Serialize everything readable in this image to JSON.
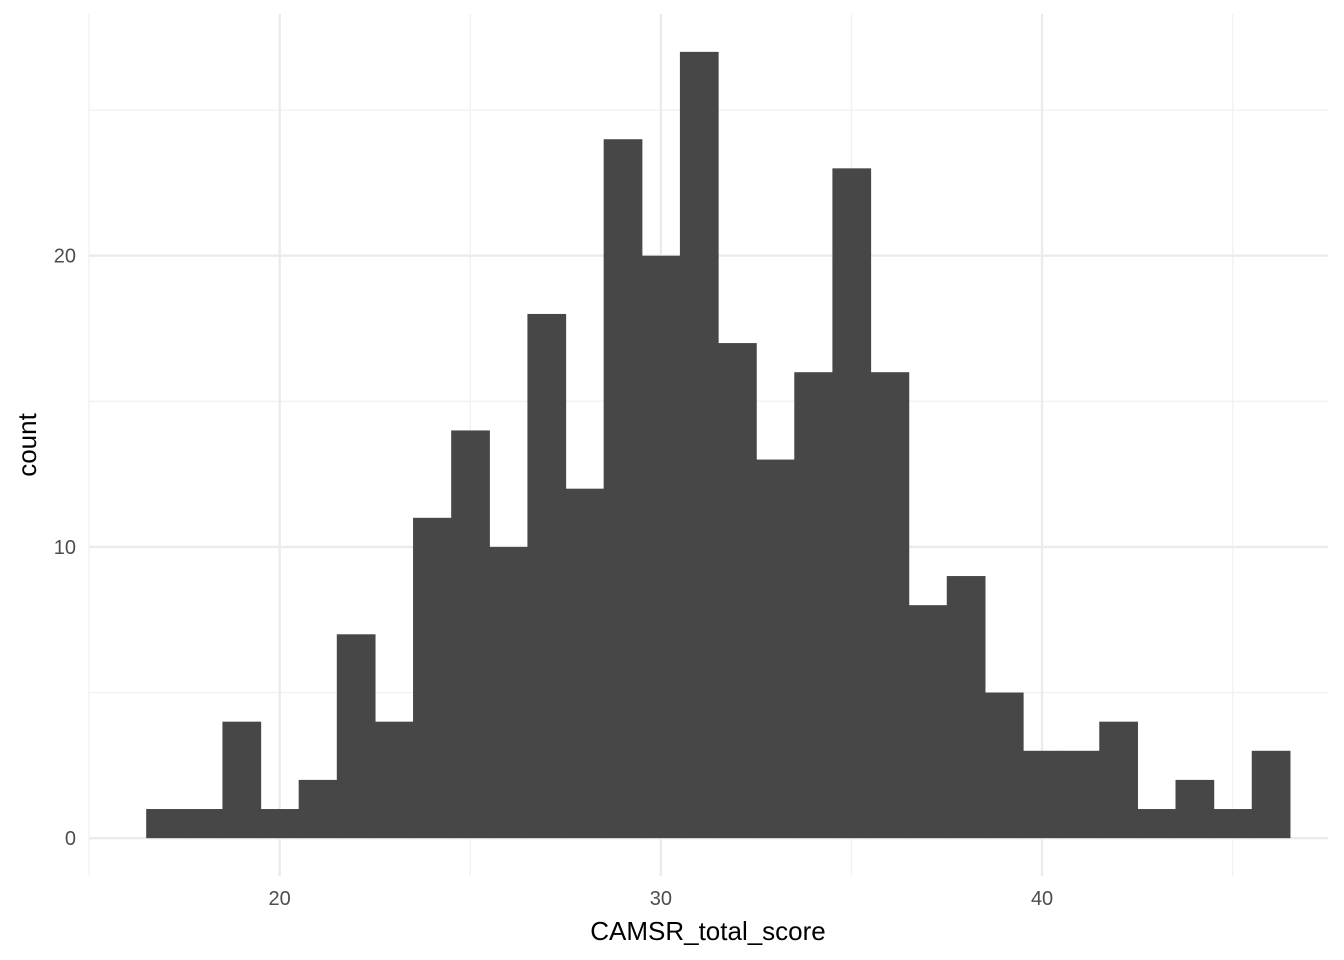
{
  "chart_data": {
    "type": "bar",
    "subtype": "histogram",
    "title": "",
    "xlabel": "CAMSR_total_score",
    "ylabel": "count",
    "xlim": [
      15,
      47.5
    ],
    "ylim": [
      -1.3,
      28.3
    ],
    "x_ticks": [
      20,
      30,
      40
    ],
    "y_ticks": [
      0,
      10,
      20
    ],
    "grid": true,
    "bin_width": 1,
    "bins": [
      {
        "start": 16.5,
        "end": 17.5,
        "count": 1
      },
      {
        "start": 17.5,
        "end": 18.5,
        "count": 1
      },
      {
        "start": 18.5,
        "end": 19.5,
        "count": 4
      },
      {
        "start": 19.5,
        "end": 20.5,
        "count": 1
      },
      {
        "start": 20.5,
        "end": 21.5,
        "count": 2
      },
      {
        "start": 21.5,
        "end": 22.5,
        "count": 7
      },
      {
        "start": 22.5,
        "end": 23.5,
        "count": 4
      },
      {
        "start": 23.5,
        "end": 24.5,
        "count": 11
      },
      {
        "start": 24.5,
        "end": 25.5,
        "count": 14
      },
      {
        "start": 25.5,
        "end": 26.5,
        "count": 10
      },
      {
        "start": 26.5,
        "end": 27.5,
        "count": 18
      },
      {
        "start": 27.5,
        "end": 28.5,
        "count": 12
      },
      {
        "start": 28.5,
        "end": 29.5,
        "count": 24
      },
      {
        "start": 29.5,
        "end": 30.5,
        "count": 20
      },
      {
        "start": 30.5,
        "end": 31.5,
        "count": 27
      },
      {
        "start": 31.5,
        "end": 32.5,
        "count": 17
      },
      {
        "start": 32.5,
        "end": 33.5,
        "count": 13
      },
      {
        "start": 33.5,
        "end": 34.5,
        "count": 16
      },
      {
        "start": 34.5,
        "end": 35.5,
        "count": 23
      },
      {
        "start": 35.5,
        "end": 36.5,
        "count": 16
      },
      {
        "start": 36.5,
        "end": 37.5,
        "count": 8
      },
      {
        "start": 37.5,
        "end": 38.5,
        "count": 9
      },
      {
        "start": 38.5,
        "end": 39.5,
        "count": 5
      },
      {
        "start": 39.5,
        "end": 40.5,
        "count": 3
      },
      {
        "start": 40.5,
        "end": 41.5,
        "count": 3
      },
      {
        "start": 41.5,
        "end": 42.5,
        "count": 4
      },
      {
        "start": 42.5,
        "end": 43.5,
        "count": 1
      },
      {
        "start": 43.5,
        "end": 44.5,
        "count": 2
      },
      {
        "start": 44.5,
        "end": 45.5,
        "count": 1
      },
      {
        "start": 45.5,
        "end": 46.5,
        "count": 3
      }
    ],
    "colors": {
      "bar": "#474747",
      "grid_major": "#ebebeb",
      "grid_minor": "#f2f2f2"
    }
  }
}
